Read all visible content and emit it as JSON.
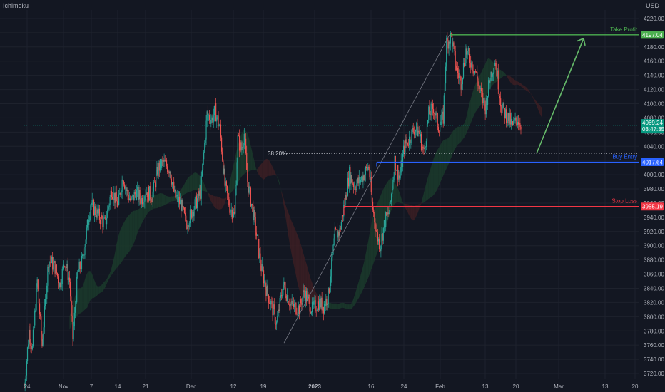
{
  "header": {
    "indicator": "Ichimoku",
    "currency": "USD"
  },
  "colors": {
    "background": "#131722",
    "grid": "#1e222d",
    "up": "#26a69a",
    "down": "#ef5350",
    "cloud_bull": "#1b3b2c",
    "cloud_bear": "#3d1f23",
    "take_profit": "#4caf50",
    "buy_entry": "#2962ff",
    "stop_loss": "#f23645",
    "current_price": "#089981",
    "arrow": "#66bb6a",
    "fib": "#d1d4dc"
  },
  "chart_data": {
    "type": "candlestick",
    "ylim": [
      3712,
      4232
    ],
    "y_ticks": [
      "4220.00",
      "4200.00",
      "4180.00",
      "4160.00",
      "4140.00",
      "4120.00",
      "4100.00",
      "4080.00",
      "4060.00",
      "4040.00",
      "4020.00",
      "4000.00",
      "3980.00",
      "3960.00",
      "3940.00",
      "3920.00",
      "3900.00",
      "3880.00",
      "3860.00",
      "3840.00",
      "3820.00",
      "3800.00",
      "3780.00",
      "3760.00",
      "3740.00",
      "3720.00"
    ],
    "x_ticks": [
      "24",
      "Nov",
      "7",
      "14",
      "21",
      "Dec",
      "12",
      "19",
      "2023",
      "16",
      "24",
      "Feb",
      "13",
      "20",
      "Mar",
      "13",
      "20"
    ],
    "price_path": [
      [
        0,
        3700
      ],
      [
        6,
        3780
      ],
      [
        10,
        3755
      ],
      [
        16,
        3850
      ],
      [
        22,
        3760
      ],
      [
        30,
        3880
      ],
      [
        38,
        3870
      ],
      [
        44,
        3845
      ],
      [
        50,
        3880
      ],
      [
        56,
        3850
      ],
      [
        60,
        3770
      ],
      [
        66,
        3860
      ],
      [
        72,
        3880
      ],
      [
        82,
        3960
      ],
      [
        90,
        3945
      ],
      [
        100,
        3930
      ],
      [
        108,
        3980
      ],
      [
        116,
        3955
      ],
      [
        122,
        4000
      ],
      [
        126,
        3978
      ],
      [
        132,
        3962
      ],
      [
        138,
        3975
      ],
      [
        145,
        3965
      ],
      [
        150,
        3978
      ],
      [
        158,
        3970
      ],
      [
        166,
        4010
      ],
      [
        172,
        4017
      ],
      [
        180,
        4008
      ],
      [
        186,
        3970
      ],
      [
        194,
        3958
      ],
      [
        200,
        3930
      ],
      [
        210,
        3955
      ],
      [
        218,
        3975
      ],
      [
        226,
        4085
      ],
      [
        232,
        4078
      ],
      [
        236,
        4090
      ],
      [
        242,
        4065
      ],
      [
        248,
        3985
      ],
      [
        254,
        3955
      ],
      [
        260,
        3942
      ],
      [
        264,
        4050
      ],
      [
        268,
        4035
      ],
      [
        272,
        4058
      ],
      [
        276,
        3990
      ],
      [
        284,
        3940
      ],
      [
        292,
        3875
      ],
      [
        300,
        3835
      ],
      [
        306,
        3815
      ],
      [
        312,
        3790
      ],
      [
        320,
        3845
      ],
      [
        330,
        3815
      ],
      [
        340,
        3812
      ],
      [
        346,
        3835
      ],
      [
        356,
        3810
      ],
      [
        364,
        3820
      ],
      [
        370,
        3815
      ],
      [
        376,
        3830
      ],
      [
        384,
        3915
      ],
      [
        390,
        3920
      ],
      [
        396,
        3960
      ],
      [
        402,
        4001
      ],
      [
        408,
        3985
      ],
      [
        414,
        3990
      ],
      [
        420,
        4000
      ],
      [
        426,
        4012
      ],
      [
        430,
        3960
      ],
      [
        436,
        3915
      ],
      [
        440,
        3900
      ],
      [
        446,
        3935
      ],
      [
        452,
        3950
      ],
      [
        458,
        4020
      ],
      [
        464,
        3995
      ],
      [
        470,
        4040
      ],
      [
        476,
        4050
      ],
      [
        482,
        4065
      ],
      [
        488,
        4060
      ],
      [
        494,
        4030
      ],
      [
        500,
        4085
      ],
      [
        506,
        4095
      ],
      [
        512,
        4068
      ],
      [
        518,
        4080
      ],
      [
        522,
        4185
      ],
      [
        528,
        4195
      ],
      [
        534,
        4150
      ],
      [
        540,
        4130
      ],
      [
        546,
        4175
      ],
      [
        552,
        4160
      ],
      [
        558,
        4145
      ],
      [
        564,
        4115
      ],
      [
        570,
        4095
      ],
      [
        576,
        4138
      ],
      [
        582,
        4162
      ],
      [
        586,
        4130
      ],
      [
        590,
        4095
      ],
      [
        598,
        4080
      ],
      [
        604,
        4068
      ],
      [
        610,
        4079
      ],
      [
        614,
        4072
      ]
    ],
    "annotations": {
      "take_profit": {
        "label": "Take Profit",
        "price": 4197.04,
        "badge": "4197.04"
      },
      "buy_entry": {
        "label": "Buy Entry",
        "price": 4017.64,
        "badge": "4017.64"
      },
      "stop_loss": {
        "label": "Stop Loss",
        "price": 3955.19,
        "badge": "3955.19"
      },
      "fib_level": {
        "label": "38.20%",
        "price": 4030
      },
      "fib_range": {
        "low": 3763,
        "high": 4197
      },
      "current_price": {
        "price": "4069.24",
        "countdown": "03:47:35"
      },
      "target_arrow": {
        "from_price": 4030,
        "to_price": 4192
      }
    }
  }
}
